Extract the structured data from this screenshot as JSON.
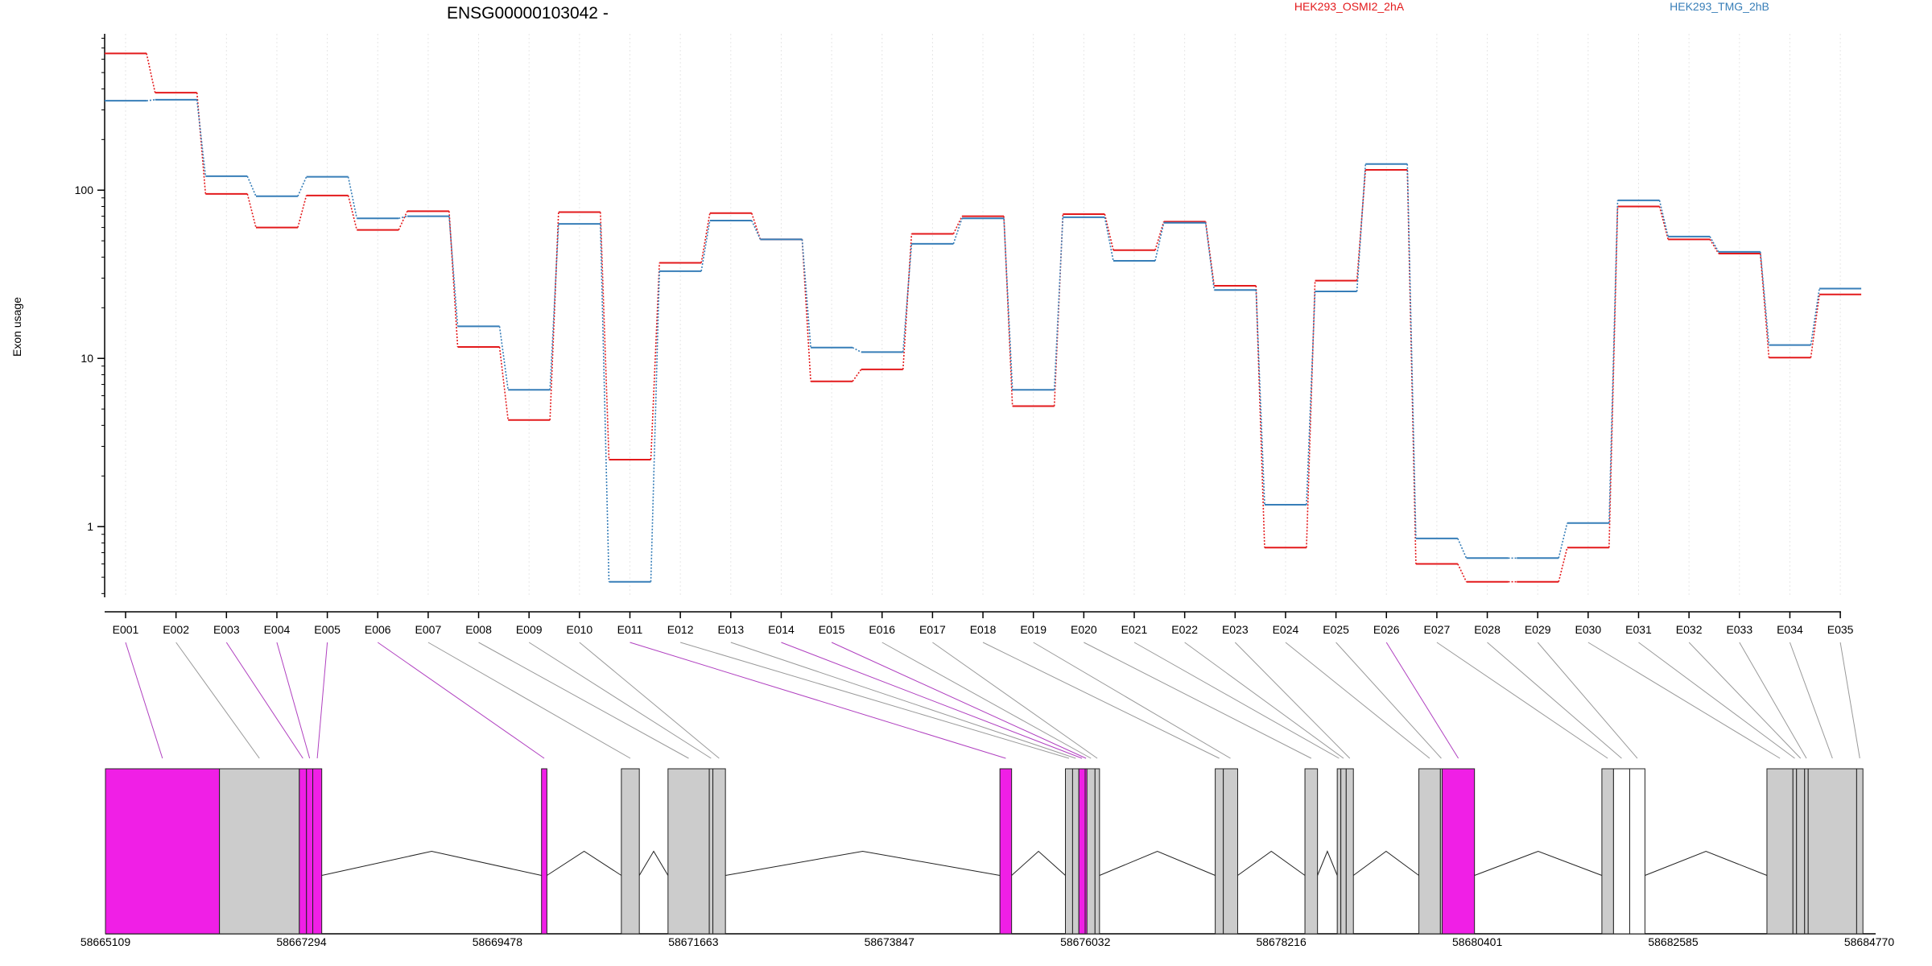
{
  "chart_data": {
    "type": "line",
    "title": "ENSG00000103042 -",
    "ylabel": "Exon usage",
    "xlabel": "",
    "y_scale": "log",
    "ylim": [
      0.38,
      850
    ],
    "y_ticks": [
      "1",
      "10",
      "100"
    ],
    "grid": "vertical dotted lines at each exon",
    "legend": "top-right",
    "categories": [
      "E001",
      "E002",
      "E003",
      "E004",
      "E005",
      "E006",
      "E007",
      "E008",
      "E009",
      "E010",
      "E011",
      "E012",
      "E013",
      "E014",
      "E015",
      "E016",
      "E017",
      "E018",
      "E019",
      "E020",
      "E021",
      "E022",
      "E023",
      "E024",
      "E025",
      "E026",
      "E027",
      "E028",
      "E029",
      "E030",
      "E031",
      "E032",
      "E033",
      "E034",
      "E035"
    ],
    "series": [
      {
        "name": "HEK293_OSMI2_2hA",
        "color": "#e31a1c",
        "values": [
          650,
          380,
          95,
          60,
          93,
          58,
          75,
          11.7,
          4.3,
          74,
          2.5,
          37,
          73,
          51,
          7.3,
          8.6,
          55,
          70,
          5.2,
          72,
          44,
          65,
          27,
          0.75,
          29,
          132,
          0.6,
          0.47,
          0.47,
          0.75,
          80,
          51,
          42,
          10.1,
          24
        ]
      },
      {
        "name": "HEK293_TMG_2hB",
        "color": "#377eb8",
        "values": [
          340,
          345,
          121,
          92,
          120,
          68,
          70,
          15.5,
          6.5,
          63,
          0.47,
          33,
          66,
          51,
          11.6,
          10.9,
          48,
          68,
          6.5,
          69,
          38,
          64,
          25.5,
          1.35,
          25,
          143,
          0.85,
          0.65,
          0.65,
          1.05,
          87,
          53,
          43,
          12,
          26
        ]
      }
    ],
    "gene_model": {
      "genomic_ticks": [
        "58665109",
        "58667294",
        "58669478",
        "58671663",
        "58673847",
        "58676032",
        "58678216",
        "58680401",
        "58682585",
        "58684770"
      ],
      "genomic_range": [
        58665109,
        58684770
      ],
      "exon_colors": {
        "differential": "#f01fe6",
        "other": "#cccccc",
        "unused": "#ffffff"
      },
      "exons": [
        {
          "id": "E001",
          "start": 58665109,
          "end": 58666380,
          "color": "differential"
        },
        {
          "id": "E002",
          "start": 58666380,
          "end": 58667270,
          "color": "other"
        },
        {
          "id": "E003",
          "start": 58667270,
          "end": 58667350,
          "color": "differential"
        },
        {
          "id": "E004",
          "start": 58667350,
          "end": 58667420,
          "color": "differential"
        },
        {
          "id": "E005",
          "start": 58667420,
          "end": 58667520,
          "color": "differential"
        },
        {
          "id": "E006",
          "start": 58669970,
          "end": 58670030,
          "color": "differential"
        },
        {
          "id": "E007",
          "start": 58670860,
          "end": 58671060,
          "color": "other"
        },
        {
          "id": "E008",
          "start": 58671380,
          "end": 58671840,
          "color": "other"
        },
        {
          "id": "E009",
          "start": 58671840,
          "end": 58671880,
          "color": "other"
        },
        {
          "id": "E010",
          "start": 58671880,
          "end": 58672020,
          "color": "other"
        },
        {
          "id": "E011",
          "start": 58675080,
          "end": 58675210,
          "color": "differential"
        },
        {
          "id": "E012",
          "start": 58675810,
          "end": 58675890,
          "color": "other"
        },
        {
          "id": "E013",
          "start": 58675890,
          "end": 58675960,
          "color": "other"
        },
        {
          "id": "E014",
          "start": 58675960,
          "end": 58676030,
          "color": "differential"
        },
        {
          "id": "E015",
          "start": 58676030,
          "end": 58676050,
          "color": "differential"
        },
        {
          "id": "E016",
          "start": 58676050,
          "end": 58676140,
          "color": "other"
        },
        {
          "id": "E017",
          "start": 58676140,
          "end": 58676190,
          "color": "other"
        },
        {
          "id": "E018",
          "start": 58677480,
          "end": 58677570,
          "color": "other"
        },
        {
          "id": "E019",
          "start": 58677570,
          "end": 58677730,
          "color": "other"
        },
        {
          "id": "E020",
          "start": 58678480,
          "end": 58678620,
          "color": "other"
        },
        {
          "id": "E021",
          "start": 58678840,
          "end": 58678880,
          "color": "other"
        },
        {
          "id": "E022",
          "start": 58678880,
          "end": 58678940,
          "color": "other"
        },
        {
          "id": "E023",
          "start": 58678940,
          "end": 58679020,
          "color": "other"
        },
        {
          "id": "E024",
          "start": 58679750,
          "end": 58679990,
          "color": "other"
        },
        {
          "id": "E025",
          "start": 58679990,
          "end": 58680010,
          "color": "other"
        },
        {
          "id": "E026",
          "start": 58680010,
          "end": 58680370,
          "color": "differential"
        },
        {
          "id": "E027",
          "start": 58681790,
          "end": 58681920,
          "color": "other"
        },
        {
          "id": "E028",
          "start": 58681920,
          "end": 58682100,
          "color": "unused"
        },
        {
          "id": "E029",
          "start": 58682100,
          "end": 58682270,
          "color": "unused"
        },
        {
          "id": "E030",
          "start": 58683630,
          "end": 58683920,
          "color": "other"
        },
        {
          "id": "E031",
          "start": 58683920,
          "end": 58683960,
          "color": "other"
        },
        {
          "id": "E032",
          "start": 58683960,
          "end": 58684050,
          "color": "other"
        },
        {
          "id": "E033",
          "start": 58684050,
          "end": 58684090,
          "color": "other"
        },
        {
          "id": "E034",
          "start": 58684090,
          "end": 58684630,
          "color": "other"
        },
        {
          "id": "E035",
          "start": 58684630,
          "end": 58684700,
          "color": "other"
        }
      ]
    }
  }
}
